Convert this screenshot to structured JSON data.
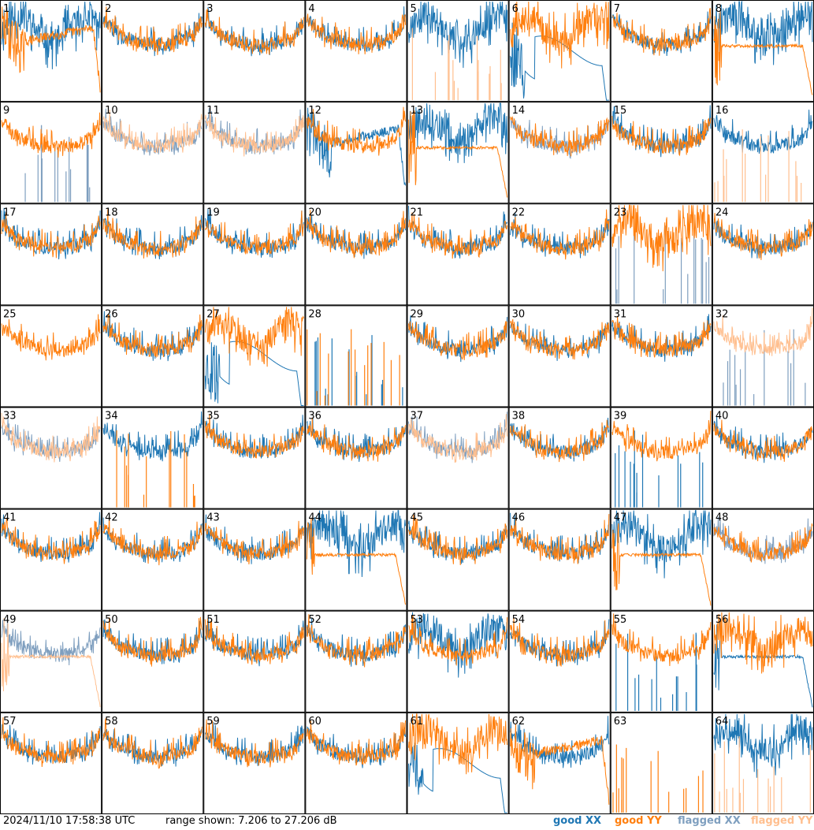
{
  "chart_data": {
    "type": "line",
    "title": "",
    "grid_layout": "8x8",
    "panels": [
      {
        "label": "1",
        "xx": "good",
        "yy": "good",
        "xx_shape": "noisy",
        "yy_shape": "sag"
      },
      {
        "label": "2",
        "xx": "good",
        "yy": "good",
        "xx_shape": "bowl",
        "yy_shape": "bowl"
      },
      {
        "label": "3",
        "xx": "good",
        "yy": "good",
        "xx_shape": "bowl",
        "yy_shape": "bowl"
      },
      {
        "label": "4",
        "xx": "good",
        "yy": "good",
        "xx_shape": "bowl",
        "yy_shape": "bowl"
      },
      {
        "label": "5",
        "xx": "good",
        "yy": "flagged",
        "xx_shape": "noisy",
        "yy_shape": "spikes"
      },
      {
        "label": "6",
        "xx": "good",
        "yy": "good",
        "xx_shape": "hump",
        "yy_shape": "noisy"
      },
      {
        "label": "7",
        "xx": "good",
        "yy": "good",
        "xx_shape": "bowl",
        "yy_shape": "bowl"
      },
      {
        "label": "8",
        "xx": "good",
        "yy": "good",
        "xx_shape": "noisy",
        "yy_shape": "flat"
      },
      {
        "label": "9",
        "xx": "flagged",
        "yy": "good",
        "xx_shape": "spikes",
        "yy_shape": "bowl"
      },
      {
        "label": "10",
        "xx": "flagged",
        "yy": "flagged",
        "xx_shape": "bowl",
        "yy_shape": "bowl"
      },
      {
        "label": "11",
        "xx": "flagged",
        "yy": "flagged",
        "xx_shape": "bowl",
        "yy_shape": "bowl"
      },
      {
        "label": "12",
        "xx": "good",
        "yy": "good",
        "xx_shape": "sag",
        "yy_shape": "bowl"
      },
      {
        "label": "13",
        "xx": "good",
        "yy": "good",
        "xx_shape": "noisy",
        "yy_shape": "flat"
      },
      {
        "label": "14",
        "xx": "flagged",
        "yy": "good",
        "xx_shape": "bowl",
        "yy_shape": "bowl"
      },
      {
        "label": "15",
        "xx": "good",
        "yy": "good",
        "xx_shape": "bowl",
        "yy_shape": "bowl"
      },
      {
        "label": "16",
        "xx": "good",
        "yy": "flagged",
        "xx_shape": "bowl",
        "yy_shape": "spikes"
      },
      {
        "label": "17",
        "xx": "good",
        "yy": "good",
        "xx_shape": "bowl",
        "yy_shape": "bowl"
      },
      {
        "label": "18",
        "xx": "good",
        "yy": "good",
        "xx_shape": "bowl",
        "yy_shape": "bowl"
      },
      {
        "label": "19",
        "xx": "good",
        "yy": "good",
        "xx_shape": "bowl",
        "yy_shape": "bowl"
      },
      {
        "label": "20",
        "xx": "good",
        "yy": "good",
        "xx_shape": "bowl",
        "yy_shape": "bowl"
      },
      {
        "label": "21",
        "xx": "good",
        "yy": "good",
        "xx_shape": "bowl",
        "yy_shape": "bowl"
      },
      {
        "label": "22",
        "xx": "good",
        "yy": "good",
        "xx_shape": "bowl",
        "yy_shape": "bowl"
      },
      {
        "label": "23",
        "xx": "flagged",
        "yy": "good",
        "xx_shape": "spikes",
        "yy_shape": "noisy"
      },
      {
        "label": "24",
        "xx": "good",
        "yy": "good",
        "xx_shape": "bowl",
        "yy_shape": "bowl"
      },
      {
        "label": "25",
        "xx": "none",
        "yy": "good",
        "xx_shape": "none",
        "yy_shape": "bowl"
      },
      {
        "label": "26",
        "xx": "good",
        "yy": "good",
        "xx_shape": "bowl",
        "yy_shape": "bowl"
      },
      {
        "label": "27",
        "xx": "good",
        "yy": "good",
        "xx_shape": "hump",
        "yy_shape": "noisy"
      },
      {
        "label": "28",
        "xx": "good",
        "yy": "good",
        "xx_shape": "spikes",
        "yy_shape": "spikes"
      },
      {
        "label": "29",
        "xx": "good",
        "yy": "good",
        "xx_shape": "bowl",
        "yy_shape": "bowl"
      },
      {
        "label": "30",
        "xx": "good",
        "yy": "good",
        "xx_shape": "bowl",
        "yy_shape": "bowl"
      },
      {
        "label": "31",
        "xx": "good",
        "yy": "good",
        "xx_shape": "bowl",
        "yy_shape": "bowl"
      },
      {
        "label": "32",
        "xx": "flagged",
        "yy": "flagged",
        "xx_shape": "spikes",
        "yy_shape": "bowl"
      },
      {
        "label": "33",
        "xx": "flagged",
        "yy": "flagged",
        "xx_shape": "bowl",
        "yy_shape": "bowl"
      },
      {
        "label": "34",
        "xx": "good",
        "yy": "good",
        "xx_shape": "bowl",
        "yy_shape": "spikes"
      },
      {
        "label": "35",
        "xx": "good",
        "yy": "good",
        "xx_shape": "bowl",
        "yy_shape": "bowl"
      },
      {
        "label": "36",
        "xx": "good",
        "yy": "good",
        "xx_shape": "bowl",
        "yy_shape": "bowl"
      },
      {
        "label": "37",
        "xx": "flagged",
        "yy": "flagged",
        "xx_shape": "bowl",
        "yy_shape": "bowl"
      },
      {
        "label": "38",
        "xx": "good",
        "yy": "good",
        "xx_shape": "bowl",
        "yy_shape": "bowl"
      },
      {
        "label": "39",
        "xx": "good",
        "yy": "good",
        "xx_shape": "spikes",
        "yy_shape": "bowl"
      },
      {
        "label": "40",
        "xx": "good",
        "yy": "good",
        "xx_shape": "bowl",
        "yy_shape": "bowl"
      },
      {
        "label": "41",
        "xx": "good",
        "yy": "good",
        "xx_shape": "bowl",
        "yy_shape": "bowl"
      },
      {
        "label": "42",
        "xx": "good",
        "yy": "good",
        "xx_shape": "bowl",
        "yy_shape": "bowl"
      },
      {
        "label": "43",
        "xx": "good",
        "yy": "good",
        "xx_shape": "bowl",
        "yy_shape": "bowl"
      },
      {
        "label": "44",
        "xx": "good",
        "yy": "good",
        "xx_shape": "noisy",
        "yy_shape": "flat"
      },
      {
        "label": "45",
        "xx": "good",
        "yy": "good",
        "xx_shape": "bowl",
        "yy_shape": "bowl"
      },
      {
        "label": "46",
        "xx": "good",
        "yy": "good",
        "xx_shape": "bowl",
        "yy_shape": "bowl"
      },
      {
        "label": "47",
        "xx": "good",
        "yy": "good",
        "xx_shape": "noisy",
        "yy_shape": "flat"
      },
      {
        "label": "48",
        "xx": "flagged",
        "yy": "good",
        "xx_shape": "bowl",
        "yy_shape": "bowl"
      },
      {
        "label": "49",
        "xx": "flagged",
        "yy": "flagged",
        "xx_shape": "bowl",
        "yy_shape": "flat"
      },
      {
        "label": "50",
        "xx": "good",
        "yy": "good",
        "xx_shape": "bowl",
        "yy_shape": "bowl"
      },
      {
        "label": "51",
        "xx": "good",
        "yy": "good",
        "xx_shape": "bowl",
        "yy_shape": "bowl"
      },
      {
        "label": "52",
        "xx": "good",
        "yy": "good",
        "xx_shape": "bowl",
        "yy_shape": "bowl"
      },
      {
        "label": "53",
        "xx": "good",
        "yy": "good",
        "xx_shape": "noisy",
        "yy_shape": "bowl"
      },
      {
        "label": "54",
        "xx": "good",
        "yy": "good",
        "xx_shape": "bowl",
        "yy_shape": "bowl"
      },
      {
        "label": "55",
        "xx": "good",
        "yy": "good",
        "xx_shape": "spikes",
        "yy_shape": "bowl"
      },
      {
        "label": "56",
        "xx": "good",
        "yy": "good",
        "xx_shape": "flat",
        "yy_shape": "noisy"
      },
      {
        "label": "57",
        "xx": "good",
        "yy": "good",
        "xx_shape": "bowl",
        "yy_shape": "bowl"
      },
      {
        "label": "58",
        "xx": "good",
        "yy": "good",
        "xx_shape": "bowl",
        "yy_shape": "bowl"
      },
      {
        "label": "59",
        "xx": "good",
        "yy": "good",
        "xx_shape": "bowl",
        "yy_shape": "bowl"
      },
      {
        "label": "60",
        "xx": "good",
        "yy": "good",
        "xx_shape": "bowl",
        "yy_shape": "bowl"
      },
      {
        "label": "61",
        "xx": "good",
        "yy": "good",
        "xx_shape": "hump",
        "yy_shape": "noisy"
      },
      {
        "label": "62",
        "xx": "good",
        "yy": "good",
        "xx_shape": "bowl",
        "yy_shape": "sag"
      },
      {
        "label": "63",
        "xx": "none",
        "yy": "good",
        "xx_shape": "none",
        "yy_shape": "spikes"
      },
      {
        "label": "64",
        "xx": "good",
        "yy": "flagged",
        "xx_shape": "noisy",
        "yy_shape": "spikes"
      }
    ]
  },
  "footer": {
    "timestamp": "2024/11/10 17:58:38 UTC",
    "range_text": "range shown: 7.206 to 27.206 dB"
  },
  "legend": {
    "good_xx": "good XX",
    "good_yy": "good YY",
    "flagged_xx": "flagged XX",
    "flagged_yy": "flagged YY"
  },
  "colors": {
    "good_xx": "#1f77b4",
    "good_yy": "#ff7f0e",
    "flagged_xx": "#7f9fbf",
    "flagged_yy": "#ffbf8f"
  }
}
